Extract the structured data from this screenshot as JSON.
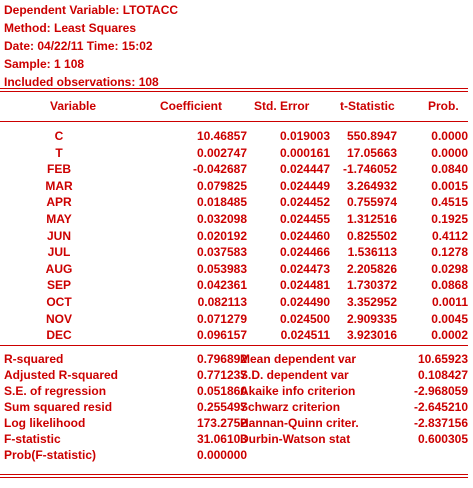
{
  "header": {
    "dependent_variable": "Dependent Variable: LTOTACC",
    "method": "Method: Least Squares",
    "date": "Date: 04/22/11   Time: 15:02",
    "sample": "Sample: 1 108",
    "observations": "Included observations: 108"
  },
  "columns": {
    "variable": "Variable",
    "coefficient": "Coefficient",
    "std_error": "Std. Error",
    "t_statistic": "t-Statistic",
    "prob": "Prob."
  },
  "coefficients": [
    {
      "variable": "C",
      "coefficient": "10.46857",
      "std_error": "0.019003",
      "t_statistic": "550.8947",
      "prob": "0.0000"
    },
    {
      "variable": "T",
      "coefficient": "0.002747",
      "std_error": "0.000161",
      "t_statistic": "17.05663",
      "prob": "0.0000"
    },
    {
      "variable": "FEB",
      "coefficient": "-0.042687",
      "std_error": "0.024447",
      "t_statistic": "-1.746052",
      "prob": "0.0840"
    },
    {
      "variable": "MAR",
      "coefficient": "0.079825",
      "std_error": "0.024449",
      "t_statistic": "3.264932",
      "prob": "0.0015"
    },
    {
      "variable": "APR",
      "coefficient": "0.018485",
      "std_error": "0.024452",
      "t_statistic": "0.755974",
      "prob": "0.4515"
    },
    {
      "variable": "MAY",
      "coefficient": "0.032098",
      "std_error": "0.024455",
      "t_statistic": "1.312516",
      "prob": "0.1925"
    },
    {
      "variable": "JUN",
      "coefficient": "0.020192",
      "std_error": "0.024460",
      "t_statistic": "0.825502",
      "prob": "0.4112"
    },
    {
      "variable": "JUL",
      "coefficient": "0.037583",
      "std_error": "0.024466",
      "t_statistic": "1.536113",
      "prob": "0.1278"
    },
    {
      "variable": "AUG",
      "coefficient": "0.053983",
      "std_error": "0.024473",
      "t_statistic": "2.205826",
      "prob": "0.0298"
    },
    {
      "variable": "SEP",
      "coefficient": "0.042361",
      "std_error": "0.024481",
      "t_statistic": "1.730372",
      "prob": "0.0868"
    },
    {
      "variable": "OCT",
      "coefficient": "0.082113",
      "std_error": "0.024490",
      "t_statistic": "3.352952",
      "prob": "0.0011"
    },
    {
      "variable": "NOV",
      "coefficient": "0.071279",
      "std_error": "0.024500",
      "t_statistic": "2.909335",
      "prob": "0.0045"
    },
    {
      "variable": "DEC",
      "coefficient": "0.096157",
      "std_error": "0.024511",
      "t_statistic": "3.923016",
      "prob": "0.0002"
    }
  ],
  "statistics": [
    {
      "label1": "R-squared",
      "value1": "0.796892",
      "label2": "Mean dependent var",
      "value2": "10.65923"
    },
    {
      "label1": "Adjusted R-squared",
      "value1": "0.771237",
      "label2": "S.D. dependent var",
      "value2": "0.108427"
    },
    {
      "label1": "S.E. of regression",
      "value1": "0.051860",
      "label2": "Akaike info criterion",
      "value2": "-2.968059"
    },
    {
      "label1": "Sum squared resid",
      "value1": "0.255497",
      "label2": "Schwarz criterion",
      "value2": "-2.645210"
    },
    {
      "label1": "Log likelihood",
      "value1": "173.2752",
      "label2": "Hannan-Quinn criter.",
      "value2": "-2.837156"
    },
    {
      "label1": "F-statistic",
      "value1": "31.06103",
      "label2": "Durbin-Watson stat",
      "value2": "0.600305"
    },
    {
      "label1": "Prob(F-statistic)",
      "value1": "0.000000",
      "label2": "",
      "value2": ""
    }
  ],
  "colors": {
    "text": "#cc0000",
    "background": "#ffffff"
  }
}
